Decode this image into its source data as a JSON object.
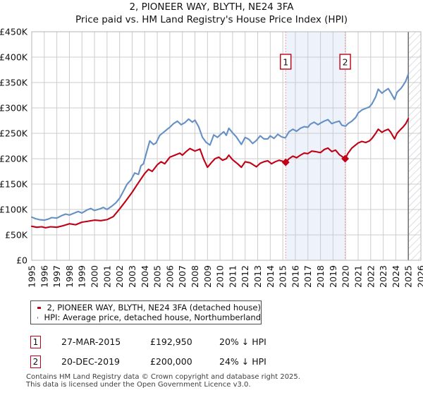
{
  "chart_data": {
    "type": "line",
    "title": "2, PIONEER WAY, BLYTH, NE24 3FA",
    "subtitle": "Price paid vs. HM Land Registry's House Price Index (HPI)",
    "x_range": [
      1995,
      2026
    ],
    "y_range_k": [
      0,
      450
    ],
    "grid": true,
    "legend_position": "below",
    "x_ticks": [
      1995,
      1996,
      1997,
      1998,
      1999,
      2000,
      2001,
      2002,
      2003,
      2004,
      2005,
      2006,
      2007,
      2008,
      2009,
      2010,
      2011,
      2012,
      2013,
      2014,
      2015,
      2016,
      2017,
      2018,
      2019,
      2020,
      2021,
      2022,
      2023,
      2024,
      2025,
      2026
    ],
    "y_ticks": [
      {
        "value": 0,
        "label": "£0"
      },
      {
        "value": 50,
        "label": "£50K"
      },
      {
        "value": 100,
        "label": "£100K"
      },
      {
        "value": 150,
        "label": "£150K"
      },
      {
        "value": 200,
        "label": "£200K"
      },
      {
        "value": 250,
        "label": "£250K"
      },
      {
        "value": 300,
        "label": "£300K"
      },
      {
        "value": 350,
        "label": "£350K"
      },
      {
        "value": 400,
        "label": "£400K"
      },
      {
        "value": 450,
        "label": "£450K"
      }
    ],
    "series": [
      {
        "name": "2, PIONEER WAY, BLYTH, NE24 3FA (detached house)",
        "color": "#c00014",
        "points": [
          [
            1995.0,
            67
          ],
          [
            1995.4,
            65
          ],
          [
            1995.8,
            66
          ],
          [
            1996.1,
            64
          ],
          [
            1996.5,
            66
          ],
          [
            1997.0,
            65
          ],
          [
            1997.5,
            68
          ],
          [
            1998.0,
            72
          ],
          [
            1998.5,
            70
          ],
          [
            1999.0,
            75
          ],
          [
            1999.5,
            77
          ],
          [
            2000.0,
            79
          ],
          [
            2000.5,
            78
          ],
          [
            2001.0,
            80
          ],
          [
            2001.5,
            86
          ],
          [
            2002.0,
            101
          ],
          [
            2002.5,
            117
          ],
          [
            2003.0,
            134
          ],
          [
            2003.4,
            149
          ],
          [
            2003.7,
            160
          ],
          [
            2004.0,
            171
          ],
          [
            2004.3,
            179
          ],
          [
            2004.6,
            175
          ],
          [
            2005.0,
            188
          ],
          [
            2005.3,
            194
          ],
          [
            2005.6,
            190
          ],
          [
            2006.0,
            203
          ],
          [
            2006.4,
            207
          ],
          [
            2006.8,
            211
          ],
          [
            2007.0,
            207
          ],
          [
            2007.3,
            214
          ],
          [
            2007.6,
            220
          ],
          [
            2008.0,
            215
          ],
          [
            2008.4,
            219
          ],
          [
            2008.7,
            199
          ],
          [
            2009.0,
            183
          ],
          [
            2009.3,
            192
          ],
          [
            2009.6,
            200
          ],
          [
            2009.9,
            203
          ],
          [
            2010.2,
            197
          ],
          [
            2010.5,
            200
          ],
          [
            2010.7,
            207
          ],
          [
            2011.0,
            198
          ],
          [
            2011.4,
            190
          ],
          [
            2011.7,
            183
          ],
          [
            2012.0,
            194
          ],
          [
            2012.4,
            192
          ],
          [
            2012.9,
            184
          ],
          [
            2013.2,
            191
          ],
          [
            2013.5,
            194
          ],
          [
            2013.8,
            196
          ],
          [
            2014.1,
            190
          ],
          [
            2014.4,
            194
          ],
          [
            2014.7,
            197
          ],
          [
            2015.0,
            195
          ],
          [
            2015.23,
            192.95
          ],
          [
            2015.5,
            200
          ],
          [
            2015.8,
            205
          ],
          [
            2016.1,
            202
          ],
          [
            2016.4,
            207
          ],
          [
            2016.7,
            211
          ],
          [
            2017.0,
            210
          ],
          [
            2017.3,
            215
          ],
          [
            2017.6,
            214
          ],
          [
            2018.0,
            212
          ],
          [
            2018.3,
            218
          ],
          [
            2018.6,
            221
          ],
          [
            2018.9,
            214
          ],
          [
            2019.2,
            217
          ],
          [
            2019.5,
            208
          ],
          [
            2019.97,
            200
          ],
          [
            2020.2,
            211
          ],
          [
            2020.5,
            221
          ],
          [
            2020.8,
            227
          ],
          [
            2021.0,
            231
          ],
          [
            2021.3,
            234
          ],
          [
            2021.6,
            232
          ],
          [
            2021.9,
            235
          ],
          [
            2022.1,
            240
          ],
          [
            2022.4,
            250
          ],
          [
            2022.6,
            258
          ],
          [
            2022.9,
            252
          ],
          [
            2023.1,
            255
          ],
          [
            2023.4,
            258
          ],
          [
            2023.6,
            252
          ],
          [
            2023.9,
            239
          ],
          [
            2024.1,
            250
          ],
          [
            2024.4,
            258
          ],
          [
            2024.6,
            263
          ],
          [
            2024.8,
            269
          ],
          [
            2025.0,
            279
          ]
        ]
      },
      {
        "name": "HPI: Average price, detached house, Northumberland",
        "color": "#6590c5",
        "points": [
          [
            1995.0,
            85
          ],
          [
            1995.3,
            82
          ],
          [
            1995.6,
            80
          ],
          [
            1996.0,
            79
          ],
          [
            1996.3,
            81
          ],
          [
            1996.6,
            84
          ],
          [
            1997.0,
            83
          ],
          [
            1997.4,
            88
          ],
          [
            1997.7,
            91
          ],
          [
            1998.0,
            89
          ],
          [
            1998.4,
            93
          ],
          [
            1998.7,
            96
          ],
          [
            1999.0,
            93
          ],
          [
            1999.4,
            99
          ],
          [
            1999.7,
            102
          ],
          [
            2000.0,
            98
          ],
          [
            2000.4,
            101
          ],
          [
            2000.7,
            104
          ],
          [
            2001.0,
            100
          ],
          [
            2001.4,
            107
          ],
          [
            2001.7,
            113
          ],
          [
            2002.0,
            122
          ],
          [
            2002.3,
            136
          ],
          [
            2002.6,
            150
          ],
          [
            2002.9,
            158
          ],
          [
            2003.2,
            172
          ],
          [
            2003.5,
            169
          ],
          [
            2003.7,
            186
          ],
          [
            2003.9,
            190
          ],
          [
            2004.1,
            208
          ],
          [
            2004.4,
            235
          ],
          [
            2004.7,
            228
          ],
          [
            2004.9,
            231
          ],
          [
            2005.2,
            246
          ],
          [
            2005.5,
            252
          ],
          [
            2005.8,
            258
          ],
          [
            2006.0,
            262
          ],
          [
            2006.3,
            269
          ],
          [
            2006.6,
            274
          ],
          [
            2006.9,
            267
          ],
          [
            2007.2,
            271
          ],
          [
            2007.5,
            278
          ],
          [
            2007.8,
            272
          ],
          [
            2008.0,
            276
          ],
          [
            2008.3,
            263
          ],
          [
            2008.6,
            242
          ],
          [
            2008.9,
            232
          ],
          [
            2009.2,
            227
          ],
          [
            2009.5,
            247
          ],
          [
            2009.8,
            242
          ],
          [
            2010.0,
            247
          ],
          [
            2010.3,
            253
          ],
          [
            2010.5,
            246
          ],
          [
            2010.7,
            260
          ],
          [
            2011.0,
            251
          ],
          [
            2011.3,
            243
          ],
          [
            2011.7,
            228
          ],
          [
            2012.0,
            242
          ],
          [
            2012.3,
            238
          ],
          [
            2012.6,
            230
          ],
          [
            2012.9,
            236
          ],
          [
            2013.2,
            245
          ],
          [
            2013.5,
            239
          ],
          [
            2013.8,
            239
          ],
          [
            2014.0,
            245
          ],
          [
            2014.3,
            240
          ],
          [
            2014.6,
            248
          ],
          [
            2014.9,
            243
          ],
          [
            2015.2,
            241
          ],
          [
            2015.5,
            253
          ],
          [
            2015.8,
            258
          ],
          [
            2016.1,
            254
          ],
          [
            2016.4,
            260
          ],
          [
            2016.7,
            263
          ],
          [
            2017.0,
            262
          ],
          [
            2017.2,
            268
          ],
          [
            2017.5,
            272
          ],
          [
            2017.8,
            267
          ],
          [
            2018.0,
            270
          ],
          [
            2018.3,
            274
          ],
          [
            2018.6,
            277
          ],
          [
            2018.9,
            269
          ],
          [
            2019.2,
            272
          ],
          [
            2019.5,
            274
          ],
          [
            2019.7,
            266
          ],
          [
            2020.0,
            264
          ],
          [
            2020.2,
            269
          ],
          [
            2020.5,
            274
          ],
          [
            2020.8,
            281
          ],
          [
            2021.0,
            290
          ],
          [
            2021.3,
            296
          ],
          [
            2021.6,
            299
          ],
          [
            2021.9,
            302
          ],
          [
            2022.1,
            308
          ],
          [
            2022.4,
            322
          ],
          [
            2022.6,
            337
          ],
          [
            2022.9,
            329
          ],
          [
            2023.1,
            333
          ],
          [
            2023.4,
            338
          ],
          [
            2023.6,
            330
          ],
          [
            2023.9,
            317
          ],
          [
            2024.1,
            331
          ],
          [
            2024.4,
            338
          ],
          [
            2024.6,
            345
          ],
          [
            2024.8,
            353
          ],
          [
            2025.0,
            367
          ]
        ]
      }
    ],
    "sales": [
      {
        "num": "1",
        "date": "27-MAR-2015",
        "price_label": "£192,950",
        "vs_hpi": "20% ↓ HPI",
        "year": 2015.23,
        "price_k": 192.95
      },
      {
        "num": "2",
        "date": "20-DEC-2019",
        "price_label": "£200,000",
        "vs_hpi": "24% ↓ HPI",
        "year": 2019.97,
        "price_k": 200
      }
    ],
    "future_start_year": 2025.0,
    "colors": {
      "grid": "#cccccc",
      "plot_border": "#b5b5b5",
      "sale_band": "#edf2fb",
      "sale_dash": "#ee8484",
      "hatch_line": "#c3c8d2",
      "now_line": "#6e6e6e",
      "marker_box_border": "#c00014",
      "tick_text": "#111111"
    }
  },
  "footer": {
    "line1": "Contains HM Land Registry data © Crown copyright and database right 2025.",
    "line2": "This data is licensed under the Open Government Licence v3.0."
  }
}
